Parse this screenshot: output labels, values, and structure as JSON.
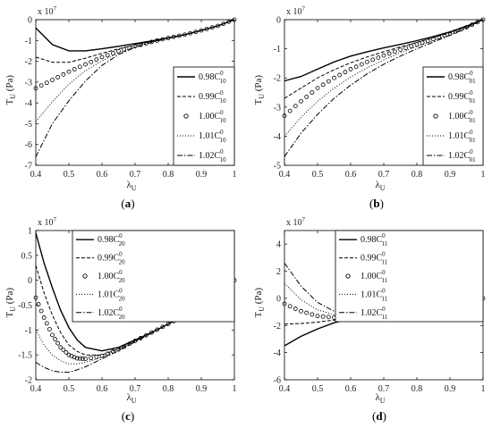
{
  "chart_data": [
    {
      "type": "line",
      "caption_open": "(",
      "caption_letter": "a",
      "caption_close": ")",
      "ylabel_main": "T",
      "ylabel_sub": "U",
      "ylabel_unit": " (Pa)",
      "xlabel_main": "λ",
      "xlabel_sub": "U",
      "exponent_base": "x 10",
      "exponent_power": "7",
      "xlim": [
        0.4,
        1.0
      ],
      "ylim": [
        -7,
        0
      ],
      "xticks": [
        "0.4",
        "0.5",
        "0.6",
        "0.7",
        "0.8",
        "0.9",
        "1"
      ],
      "yticks": [
        "-7",
        "-6",
        "-5",
        "-4",
        "-3",
        "-2",
        "-1",
        "0"
      ],
      "legend": "right",
      "series": [
        {
          "name": "0.98C",
          "sup": "0",
          "sub": "10",
          "style": "solid",
          "x": [
            0.4,
            0.45,
            0.5,
            0.55,
            0.6,
            0.65,
            0.7,
            0.75,
            0.8,
            0.85,
            0.9,
            0.95,
            1.0
          ],
          "y": [
            -0.4,
            -1.2,
            -1.5,
            -1.5,
            -1.4,
            -1.28,
            -1.15,
            -1.02,
            -0.88,
            -0.72,
            -0.52,
            -0.3,
            0
          ]
        },
        {
          "name": "0.99C",
          "sup": "0",
          "sub": "10",
          "style": "dashed",
          "x": [
            0.4,
            0.45,
            0.5,
            0.55,
            0.6,
            0.65,
            0.7,
            0.75,
            0.8,
            0.85,
            0.9,
            0.95,
            1.0
          ],
          "y": [
            -1.8,
            -2.05,
            -2.05,
            -1.85,
            -1.62,
            -1.4,
            -1.22,
            -1.05,
            -0.88,
            -0.72,
            -0.52,
            -0.3,
            0
          ]
        },
        {
          "name": "1.00C",
          "sup": "0",
          "sub": "10",
          "style": "circles",
          "x": [
            0.4,
            0.45,
            0.5,
            0.55,
            0.6,
            0.65,
            0.7,
            0.75,
            0.8,
            0.85,
            0.9,
            0.95,
            1.0
          ],
          "y": [
            -3.3,
            -2.9,
            -2.5,
            -2.15,
            -1.8,
            -1.52,
            -1.28,
            -1.07,
            -0.88,
            -0.72,
            -0.52,
            -0.3,
            0
          ]
        },
        {
          "name": "1.01C",
          "sup": "0",
          "sub": "10",
          "style": "dotted",
          "x": [
            0.4,
            0.45,
            0.5,
            0.55,
            0.6,
            0.65,
            0.7,
            0.75,
            0.8,
            0.85,
            0.9,
            0.95,
            1.0
          ],
          "y": [
            -4.9,
            -3.95,
            -3.1,
            -2.45,
            -1.98,
            -1.6,
            -1.3,
            -1.08,
            -0.88,
            -0.72,
            -0.52,
            -0.3,
            0
          ]
        },
        {
          "name": "1.02C",
          "sup": "0",
          "sub": "10",
          "style": "dashdot",
          "x": [
            0.4,
            0.45,
            0.5,
            0.55,
            0.6,
            0.65,
            0.7,
            0.75,
            0.8,
            0.85,
            0.9,
            0.95,
            1.0
          ],
          "y": [
            -6.6,
            -5.0,
            -3.9,
            -2.95,
            -2.2,
            -1.68,
            -1.33,
            -1.09,
            -0.89,
            -0.72,
            -0.52,
            -0.3,
            0
          ]
        }
      ]
    },
    {
      "type": "line",
      "caption_open": "(",
      "caption_letter": "b",
      "caption_close": ")",
      "ylabel_main": "T",
      "ylabel_sub": "U",
      "ylabel_unit": " (Pa)",
      "xlabel_main": "λ",
      "xlabel_sub": "U",
      "exponent_base": "x 10",
      "exponent_power": "7",
      "xlim": [
        0.4,
        1.0
      ],
      "ylim": [
        -5,
        0
      ],
      "xticks": [
        "0.4",
        "0.5",
        "0.6",
        "0.7",
        "0.8",
        "0.9",
        "1"
      ],
      "yticks": [
        "-5",
        "-4",
        "-3",
        "-2",
        "-1",
        "0"
      ],
      "legend": "right",
      "series": [
        {
          "name": "0.98C",
          "sup": "0",
          "sub": "01",
          "style": "solid",
          "x": [
            0.4,
            0.45,
            0.5,
            0.55,
            0.6,
            0.65,
            0.7,
            0.75,
            0.8,
            0.85,
            0.9,
            0.95,
            1.0
          ],
          "y": [
            -2.1,
            -1.95,
            -1.7,
            -1.45,
            -1.25,
            -1.1,
            -0.97,
            -0.85,
            -0.72,
            -0.58,
            -0.42,
            -0.22,
            0
          ]
        },
        {
          "name": "0.99C",
          "sup": "0",
          "sub": "01",
          "style": "dashed",
          "x": [
            0.4,
            0.45,
            0.5,
            0.55,
            0.6,
            0.65,
            0.7,
            0.75,
            0.8,
            0.85,
            0.9,
            0.95,
            1.0
          ],
          "y": [
            -2.7,
            -2.35,
            -2.0,
            -1.72,
            -1.48,
            -1.28,
            -1.1,
            -0.94,
            -0.78,
            -0.62,
            -0.45,
            -0.24,
            0
          ]
        },
        {
          "name": "1.00C",
          "sup": "0",
          "sub": "01",
          "style": "circles",
          "x": [
            0.4,
            0.45,
            0.5,
            0.55,
            0.6,
            0.65,
            0.7,
            0.75,
            0.8,
            0.85,
            0.9,
            0.95,
            1.0
          ],
          "y": [
            -3.3,
            -2.8,
            -2.35,
            -2.0,
            -1.7,
            -1.45,
            -1.23,
            -1.03,
            -0.85,
            -0.67,
            -0.48,
            -0.26,
            0
          ]
        },
        {
          "name": "1.01C",
          "sup": "0",
          "sub": "01",
          "style": "dotted",
          "x": [
            0.4,
            0.45,
            0.5,
            0.55,
            0.6,
            0.65,
            0.7,
            0.75,
            0.8,
            0.85,
            0.9,
            0.95,
            1.0
          ],
          "y": [
            -4.0,
            -3.35,
            -2.8,
            -2.35,
            -1.97,
            -1.65,
            -1.38,
            -1.14,
            -0.92,
            -0.72,
            -0.51,
            -0.27,
            0
          ]
        },
        {
          "name": "1.02C",
          "sup": "0",
          "sub": "01",
          "style": "dashdot",
          "x": [
            0.4,
            0.45,
            0.5,
            0.55,
            0.6,
            0.65,
            0.7,
            0.75,
            0.8,
            0.85,
            0.9,
            0.95,
            1.0
          ],
          "y": [
            -4.7,
            -3.9,
            -3.25,
            -2.7,
            -2.25,
            -1.86,
            -1.53,
            -1.25,
            -1.0,
            -0.77,
            -0.54,
            -0.29,
            0
          ]
        }
      ]
    },
    {
      "type": "line",
      "caption_open": "(",
      "caption_letter": "c",
      "caption_close": ")",
      "ylabel_main": "T",
      "ylabel_sub": "U",
      "ylabel_unit": " (Pa)",
      "xlabel_main": "λ",
      "xlabel_sub": "U",
      "exponent_base": "x 10",
      "exponent_power": "7",
      "xlim": [
        0.4,
        1.0
      ],
      "ylim": [
        -2,
        1
      ],
      "xticks": [
        "0.4",
        "0.5",
        "0.6",
        "0.7",
        "0.8",
        "0.9",
        "1"
      ],
      "yticks": [
        "-2",
        "-1.5",
        "-1",
        "-0.5",
        "0",
        "0.5",
        "1"
      ],
      "legend": "top-right",
      "series": [
        {
          "name": "0.98C",
          "sup": "0",
          "sub": "20",
          "style": "solid",
          "x": [
            0.4,
            0.425,
            0.45,
            0.475,
            0.5,
            0.525,
            0.55,
            0.6,
            0.65,
            0.7,
            0.75,
            0.8,
            0.85,
            0.9,
            0.95,
            1.0
          ],
          "y": [
            0.95,
            0.35,
            -0.15,
            -0.6,
            -0.95,
            -1.2,
            -1.35,
            -1.42,
            -1.35,
            -1.2,
            -1.05,
            -0.88,
            -0.7,
            -0.5,
            -0.27,
            0
          ]
        },
        {
          "name": "0.99C",
          "sup": "0",
          "sub": "20",
          "style": "dashed",
          "x": [
            0.4,
            0.425,
            0.45,
            0.475,
            0.5,
            0.525,
            0.55,
            0.6,
            0.65,
            0.7,
            0.75,
            0.8,
            0.85,
            0.9,
            0.95,
            1.0
          ],
          "y": [
            0.3,
            -0.25,
            -0.7,
            -1.05,
            -1.3,
            -1.43,
            -1.5,
            -1.5,
            -1.38,
            -1.22,
            -1.05,
            -0.88,
            -0.7,
            -0.5,
            -0.27,
            0
          ]
        },
        {
          "name": "1.00C",
          "sup": "0",
          "sub": "20",
          "style": "circles",
          "x": [
            0.4,
            0.425,
            0.45,
            0.475,
            0.5,
            0.525,
            0.55,
            0.6,
            0.65,
            0.7,
            0.75,
            0.8,
            0.85,
            0.9,
            0.95,
            1.0
          ],
          "y": [
            -0.35,
            -0.75,
            -1.1,
            -1.35,
            -1.5,
            -1.57,
            -1.58,
            -1.52,
            -1.39,
            -1.22,
            -1.05,
            -0.88,
            -0.7,
            -0.5,
            -0.27,
            0
          ]
        },
        {
          "name": "1.01C",
          "sup": "0",
          "sub": "20",
          "style": "dotted",
          "x": [
            0.4,
            0.425,
            0.45,
            0.475,
            0.5,
            0.525,
            0.55,
            0.6,
            0.65,
            0.7,
            0.75,
            0.8,
            0.85,
            0.9,
            0.95,
            1.0
          ],
          "y": [
            -1.0,
            -1.3,
            -1.5,
            -1.62,
            -1.68,
            -1.68,
            -1.65,
            -1.55,
            -1.4,
            -1.23,
            -1.05,
            -0.88,
            -0.7,
            -0.5,
            -0.27,
            0
          ]
        },
        {
          "name": "1.02C",
          "sup": "0",
          "sub": "20",
          "style": "dashdot",
          "x": [
            0.4,
            0.425,
            0.45,
            0.475,
            0.5,
            0.525,
            0.55,
            0.6,
            0.65,
            0.7,
            0.75,
            0.8,
            0.85,
            0.9,
            0.95,
            1.0
          ],
          "y": [
            -1.65,
            -1.75,
            -1.82,
            -1.85,
            -1.85,
            -1.8,
            -1.74,
            -1.58,
            -1.42,
            -1.24,
            -1.06,
            -0.88,
            -0.7,
            -0.5,
            -0.27,
            0
          ]
        }
      ]
    },
    {
      "type": "line",
      "caption_open": "(",
      "caption_letter": "d",
      "caption_close": ")",
      "ylabel_main": "T",
      "ylabel_sub": "U",
      "ylabel_unit": " (Pa)",
      "xlabel_main": "λ",
      "xlabel_sub": "U",
      "exponent_base": "x 10",
      "exponent_power": "7",
      "xlim": [
        0.4,
        1.0
      ],
      "ylim": [
        -6,
        5
      ],
      "xticks": [
        "0.4",
        "0.5",
        "0.6",
        "0.7",
        "0.8",
        "0.9",
        "1"
      ],
      "yticks": [
        "-6",
        "-4",
        "-2",
        "0",
        "2",
        "4"
      ],
      "legend": "top-right",
      "series": [
        {
          "name": "0.98C",
          "sup": "0",
          "sub": "11",
          "style": "solid",
          "x": [
            0.4,
            0.45,
            0.5,
            0.55,
            0.6,
            0.65,
            0.7,
            0.75,
            0.8,
            0.85,
            0.9,
            0.95,
            1.0
          ],
          "y": [
            -3.5,
            -2.8,
            -2.25,
            -1.8,
            -1.5,
            -1.3,
            -1.15,
            -1.0,
            -0.85,
            -0.68,
            -0.48,
            -0.25,
            0
          ]
        },
        {
          "name": "0.99C",
          "sup": "0",
          "sub": "11",
          "style": "dashed",
          "x": [
            0.4,
            0.45,
            0.5,
            0.55,
            0.6,
            0.65,
            0.7,
            0.75,
            0.8,
            0.85,
            0.9,
            0.95,
            1.0
          ],
          "y": [
            -1.9,
            -1.85,
            -1.75,
            -1.6,
            -1.45,
            -1.28,
            -1.14,
            -1.0,
            -0.85,
            -0.68,
            -0.48,
            -0.25,
            0
          ]
        },
        {
          "name": "1.00C",
          "sup": "0",
          "sub": "11",
          "style": "circles",
          "x": [
            0.4,
            0.45,
            0.5,
            0.55,
            0.6,
            0.65,
            0.7,
            0.75,
            0.8,
            0.85,
            0.9,
            0.95,
            1.0
          ],
          "y": [
            -0.4,
            -0.95,
            -1.3,
            -1.42,
            -1.4,
            -1.28,
            -1.14,
            -1.0,
            -0.85,
            -0.68,
            -0.48,
            -0.25,
            0
          ]
        },
        {
          "name": "1.01C",
          "sup": "0",
          "sub": "11",
          "style": "dotted",
          "x": [
            0.4,
            0.45,
            0.5,
            0.55,
            0.6,
            0.65,
            0.7,
            0.75,
            0.8,
            0.85,
            0.9,
            0.95,
            1.0
          ],
          "y": [
            1.1,
            -0.1,
            -0.85,
            -1.2,
            -1.3,
            -1.25,
            -1.13,
            -1.0,
            -0.85,
            -0.68,
            -0.48,
            -0.25,
            0
          ]
        },
        {
          "name": "1.02C",
          "sup": "0",
          "sub": "11",
          "style": "dashdot",
          "x": [
            0.4,
            0.45,
            0.5,
            0.55,
            0.6,
            0.65,
            0.7,
            0.75,
            0.8,
            0.85,
            0.9,
            0.95,
            1.0
          ],
          "y": [
            2.6,
            0.9,
            -0.3,
            -0.95,
            -1.2,
            -1.22,
            -1.12,
            -1.0,
            -0.85,
            -0.68,
            -0.48,
            -0.25,
            0
          ]
        }
      ]
    }
  ]
}
